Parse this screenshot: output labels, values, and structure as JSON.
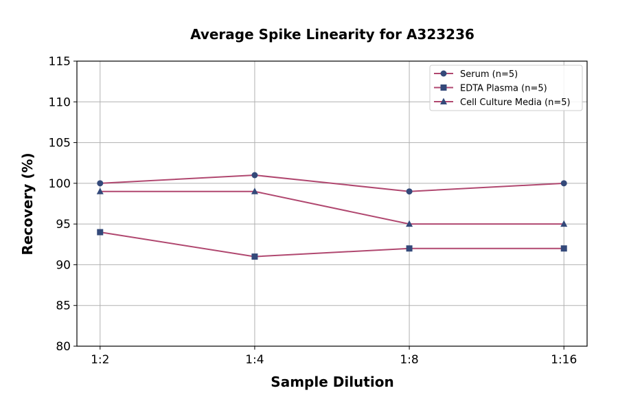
{
  "chart_data": {
    "type": "line",
    "title": "Average Spike Linearity for A323236",
    "xlabel": "Sample Dilution",
    "ylabel": "Recovery (%)",
    "categories": [
      "1:2",
      "1:4",
      "1:8",
      "1:16"
    ],
    "ylim": [
      80,
      115
    ],
    "yticks": [
      80,
      85,
      90,
      95,
      100,
      105,
      110,
      115
    ],
    "grid": true,
    "legend_position": "top-right",
    "line_color": "#b0476f",
    "marker_color": "#34497a",
    "series": [
      {
        "name": "Serum (n=5)",
        "marker": "circle",
        "values": [
          100,
          101,
          99,
          100
        ]
      },
      {
        "name": "EDTA Plasma (n=5)",
        "marker": "square",
        "values": [
          94,
          91,
          92,
          92
        ]
      },
      {
        "name": "Cell Culture Media (n=5)",
        "marker": "triangle",
        "values": [
          99,
          99,
          95,
          95
        ]
      }
    ]
  }
}
